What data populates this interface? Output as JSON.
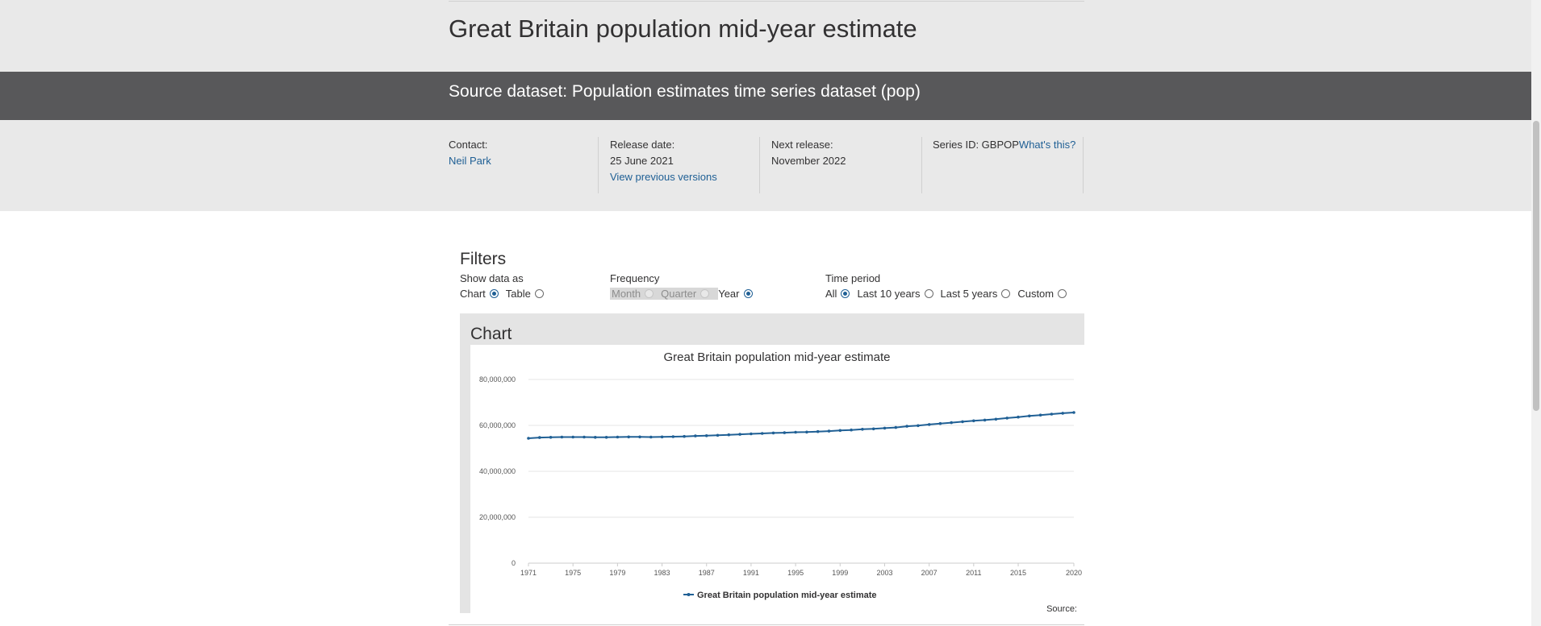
{
  "page": {
    "title": "Great Britain population mid-year estimate",
    "source_dataset": "Source dataset: Population estimates time series dataset (pop)"
  },
  "meta": {
    "contact_label": "Contact:",
    "contact_name": "Neil Park",
    "release_label": "Release date:",
    "release_date": "25 June 2021",
    "previous_versions": "View previous versions",
    "next_release_label": "Next release:",
    "next_release": "November 2022",
    "series_id_label": "Series ID: GBPOP",
    "whats_this": "What's this?"
  },
  "filters": {
    "title": "Filters",
    "show_as_label": "Show data as",
    "show_as_options": [
      "Chart",
      "Table"
    ],
    "show_as_selected": "Chart",
    "frequency_label": "Frequency",
    "frequency_options": [
      "Month",
      "Quarter",
      "Year"
    ],
    "frequency_selected": "Year",
    "time_period_label": "Time period",
    "time_period_options": [
      "All",
      "Last 10 years",
      "Last 5 years",
      "Custom"
    ],
    "time_period_selected": "All"
  },
  "chart_section": {
    "heading": "Chart",
    "source_label": "Source:"
  },
  "chart_data": {
    "type": "line",
    "title": "Great Britain population mid-year estimate",
    "xlabel": "",
    "ylabel": "",
    "ylim": [
      0,
      80000000
    ],
    "y_ticks": [
      "0",
      "20,000,000",
      "40,000,000",
      "60,000,000",
      "80,000,000"
    ],
    "x_tick_labels": [
      "1971",
      "1975",
      "1979",
      "1983",
      "1987",
      "1991",
      "1995",
      "1999",
      "2003",
      "2007",
      "2011",
      "2015",
      "2020"
    ],
    "grid": true,
    "legend": "bottom-center",
    "series_color": "#206095",
    "series": [
      {
        "name": "Great Britain population mid-year estimate",
        "x": [
          1971,
          1972,
          1973,
          1974,
          1975,
          1976,
          1977,
          1978,
          1979,
          1980,
          1981,
          1982,
          1983,
          1984,
          1985,
          1986,
          1987,
          1988,
          1989,
          1990,
          1991,
          1992,
          1993,
          1994,
          1995,
          1996,
          1997,
          1998,
          1999,
          2000,
          2001,
          2002,
          2003,
          2004,
          2005,
          2006,
          2007,
          2008,
          2009,
          2010,
          2011,
          2012,
          2013,
          2014,
          2015,
          2016,
          2017,
          2018,
          2019,
          2020
        ],
        "values": [
          54400000,
          54700000,
          54800000,
          54900000,
          54900000,
          54900000,
          54800000,
          54800000,
          54900000,
          55000000,
          55000000,
          54900000,
          55000000,
          55100000,
          55200000,
          55400000,
          55500000,
          55700000,
          55900000,
          56100000,
          56300000,
          56500000,
          56700000,
          56800000,
          57000000,
          57100000,
          57300000,
          57500000,
          57800000,
          58000000,
          58300000,
          58500000,
          58800000,
          59100000,
          59600000,
          59900000,
          60400000,
          60800000,
          61200000,
          61600000,
          62000000,
          62300000,
          62700000,
          63200000,
          63600000,
          64100000,
          64500000,
          64900000,
          65300000,
          65600000
        ]
      }
    ]
  }
}
